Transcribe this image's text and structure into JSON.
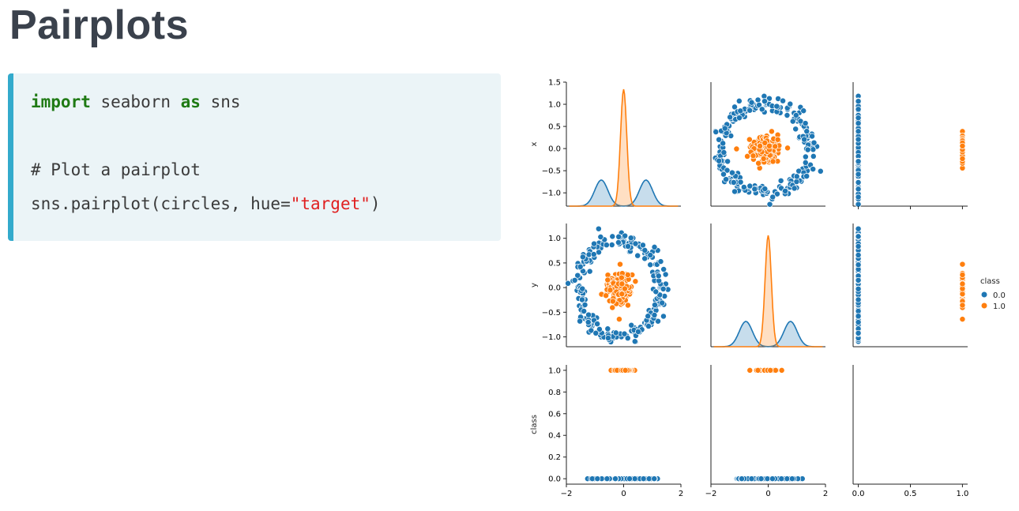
{
  "title": "Pairplots",
  "code": {
    "line1": {
      "kw1": "import",
      "mid": " seaborn ",
      "kw2": "as",
      "end": " sns"
    },
    "comment": "# Plot a pairplot",
    "line3": {
      "pre": "sns.pairplot(circles, hue=",
      "str": "\"target\"",
      "post": ")"
    },
    "colors": {
      "keyword": "#1f7a14",
      "string": "#e02020",
      "accent": "#33aacc"
    }
  },
  "chart_data": {
    "type": "scatter",
    "subtype": "pairplot",
    "variables": [
      "x",
      "y",
      "class"
    ],
    "hue": {
      "title": "class",
      "levels": [
        "0.0",
        "1.0"
      ],
      "colors": [
        "#1f77b4",
        "#ff7f0e"
      ]
    },
    "clusters": {
      "0.0": {
        "shape": "ring",
        "center": [
          0,
          0
        ],
        "radius": 1.0
      },
      "1.0": {
        "shape": "blob",
        "center": [
          0,
          0
        ],
        "radius": 0.3
      }
    },
    "kde": {
      "0.0": {
        "shape": "bimodal",
        "peaks": [
          -0.78,
          0.78
        ]
      },
      "1.0": {
        "shape": "unimodal",
        "peak": 0.0
      }
    },
    "axes": {
      "x": {
        "lim": [
          -1.3,
          1.5
        ],
        "ticks": [
          "1.5",
          "1.0",
          "0.5",
          "0.0",
          "−0.5",
          "−1.0"
        ]
      },
      "y": {
        "lim": [
          -1.2,
          1.3
        ],
        "ticks": [
          "1.0",
          "0.5",
          "0.0",
          "−0.5",
          "−1.0"
        ]
      },
      "class": {
        "lim": [
          -0.05,
          1.05
        ],
        "ticks": [
          "1.0",
          "0.8",
          "0.6",
          "0.4",
          "0.2",
          "0.0"
        ]
      },
      "bottom_xy": {
        "lim": [
          -2,
          2
        ],
        "ticks": [
          "−2",
          "0",
          "2"
        ]
      },
      "bottom_class": {
        "lim": [
          -0.05,
          1.05
        ],
        "ticks": [
          "0.0",
          "0.5",
          "1.0"
        ]
      }
    },
    "grid": false,
    "legend_position": "right"
  }
}
